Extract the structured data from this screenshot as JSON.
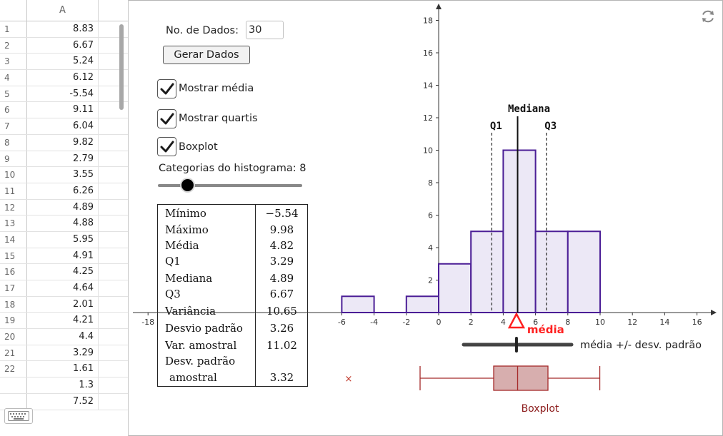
{
  "spreadsheet": {
    "column_header": "A",
    "rows": [
      {
        "n": "1",
        "v": "8.83"
      },
      {
        "n": "2",
        "v": "6.67"
      },
      {
        "n": "3",
        "v": "5.24"
      },
      {
        "n": "4",
        "v": "6.12"
      },
      {
        "n": "5",
        "v": "-5.54"
      },
      {
        "n": "6",
        "v": "9.11"
      },
      {
        "n": "7",
        "v": "6.04"
      },
      {
        "n": "8",
        "v": "9.82"
      },
      {
        "n": "9",
        "v": "2.79"
      },
      {
        "n": "10",
        "v": "3.55"
      },
      {
        "n": "11",
        "v": "6.26"
      },
      {
        "n": "12",
        "v": "4.89"
      },
      {
        "n": "13",
        "v": "4.88"
      },
      {
        "n": "14",
        "v": "5.95"
      },
      {
        "n": "15",
        "v": "4.91"
      },
      {
        "n": "16",
        "v": "4.25"
      },
      {
        "n": "17",
        "v": "4.64"
      },
      {
        "n": "18",
        "v": "2.01"
      },
      {
        "n": "19",
        "v": "4.21"
      },
      {
        "n": "20",
        "v": "4.4"
      },
      {
        "n": "21",
        "v": "3.29"
      },
      {
        "n": "22",
        "v": "1.61"
      },
      {
        "n": "",
        "v": "1.3"
      },
      {
        "n": "",
        "v": "7.52"
      }
    ]
  },
  "controls": {
    "n_label": "No. de Dados:",
    "n_value": "30",
    "generate_label": "Gerar Dados",
    "show_mean_label": "Mostrar média",
    "show_quartiles_label": "Mostrar quartis",
    "boxplot_label": "Boxplot",
    "show_mean_checked": true,
    "show_quartiles_checked": true,
    "boxplot_checked": true,
    "bins_label": "Categorias do histograma: 8",
    "bins_value": 8,
    "bins_fraction": 0.18
  },
  "stats": {
    "rows": [
      {
        "name": "Mínimo",
        "value": "−5.54"
      },
      {
        "name": "Máximo",
        "value": "9.98"
      },
      {
        "name": "Média",
        "value": "4.82"
      },
      {
        "name": "Q1",
        "value": "3.29"
      },
      {
        "name": "Mediana",
        "value": "4.89"
      },
      {
        "name": "Q3",
        "value": "6.67"
      },
      {
        "name": "Variância",
        "value": "10.65"
      },
      {
        "name": "Desvio padrão",
        "value": "3.26"
      },
      {
        "name": "Var. amostral",
        "value": "11.02"
      },
      {
        "name": "Desv. padrão",
        "value": ""
      },
      {
        "name": "amostral",
        "value": "3.32"
      }
    ]
  },
  "chart_data": {
    "type": "bar",
    "x_ticks": [
      -18,
      -6,
      -4,
      -2,
      0,
      2,
      4,
      6,
      8,
      10,
      12,
      14,
      16
    ],
    "x_tick_labels": [
      "-18",
      "-6",
      "-4",
      "-2",
      "0",
      "2",
      "4",
      "6",
      "8",
      "10",
      "12",
      "14",
      "16"
    ],
    "y_ticks": [
      2,
      4,
      6,
      8,
      10,
      12,
      14,
      16,
      18
    ],
    "y_tick_labels": [
      "2",
      "4",
      "6",
      "8",
      "10",
      "12",
      "14",
      "16",
      "18"
    ],
    "bins": [
      {
        "from": -6,
        "to": -4,
        "count": 1
      },
      {
        "from": -4,
        "to": -2,
        "count": 0
      },
      {
        "from": -2,
        "to": 0,
        "count": 1
      },
      {
        "from": 0,
        "to": 2,
        "count": 3
      },
      {
        "from": 2,
        "to": 4,
        "count": 5
      },
      {
        "from": 4,
        "to": 6,
        "count": 10
      },
      {
        "from": 6,
        "to": 8,
        "count": 5
      },
      {
        "from": 8,
        "to": 10,
        "count": 5
      }
    ],
    "mean": 4.82,
    "sd": 3.26,
    "min": -5.54,
    "max": 9.98,
    "q1": 3.29,
    "median": 4.89,
    "q3": 6.67,
    "outlier": -5.54,
    "labels": {
      "median": "Mediana",
      "q1": "Q1",
      "q3": "Q3",
      "mean": "média",
      "sd_range": "média +/- desv. padrão",
      "boxplot": "Boxplot"
    },
    "colors": {
      "bar_fill": "#ece8f6",
      "bar_stroke": "#4b1e96",
      "mean_marker": "#ff2020",
      "boxplot": "#a52a2a",
      "boxplot_fill": "#d7aeae"
    }
  }
}
